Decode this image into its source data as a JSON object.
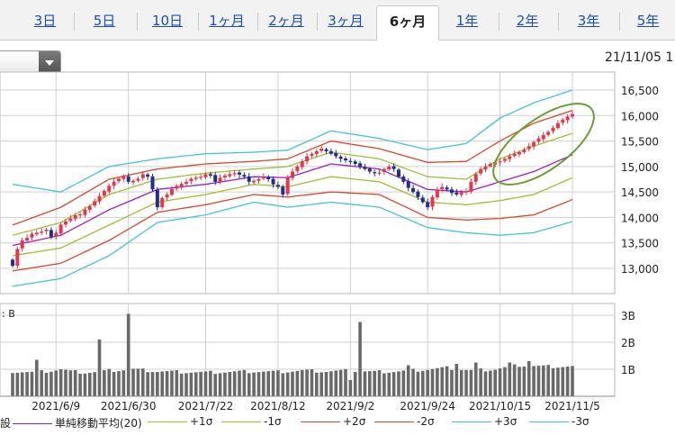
{
  "tabs": [
    {
      "label": "3日",
      "active": false
    },
    {
      "label": "5日",
      "active": false
    },
    {
      "label": "10日",
      "active": false
    },
    {
      "label": "1ヶ月",
      "active": false
    },
    {
      "label": "2ヶ月",
      "active": false
    },
    {
      "label": "3ヶ月",
      "active": false
    },
    {
      "label": "6ヶ月",
      "active": true
    },
    {
      "label": "1年",
      "active": false
    },
    {
      "label": "2年",
      "active": false
    },
    {
      "label": "3年",
      "active": false
    },
    {
      "label": "5年",
      "active": false
    }
  ],
  "header": {
    "timestamp": "21/11/05 1"
  },
  "colors": {
    "up_candle": "#e6364a",
    "down_candle": "#1f2f8c",
    "ma20": "#9b1fc6",
    "sigma1": "#9fbe34",
    "sigma2": "#d9472a",
    "sigma3": "#44c3e0",
    "volume": "#696969",
    "highlight_ellipse": "#6a9e34",
    "grid": "#d0d0d0"
  },
  "chart_data": [
    {
      "type": "candlestick",
      "title": "",
      "y_ticks": [
        "16,500",
        "16,000",
        "15,500",
        "15,000",
        "14,500",
        "14,000",
        "13,500",
        "13,000"
      ],
      "ylim": [
        12500,
        16750
      ],
      "x_tick_labels": [
        "2021/6/9",
        "2021/6/30",
        "2021/7/22",
        "2021/8/12",
        "2021/9/2",
        "2021/9/24",
        "2021/10/15",
        "2021/11/5"
      ],
      "x_tick_index": [
        9,
        24,
        40,
        55,
        70,
        86,
        101,
        116
      ],
      "close_anchors": [
        [
          0,
          13050
        ],
        [
          1,
          13380
        ],
        [
          2,
          13550
        ],
        [
          3,
          13600
        ],
        [
          4,
          13680
        ],
        [
          5,
          13700
        ],
        [
          6,
          13720
        ],
        [
          7,
          13760
        ],
        [
          8,
          13620
        ],
        [
          9,
          13700
        ],
        [
          10,
          13860
        ],
        [
          11,
          13920
        ],
        [
          12,
          13980
        ],
        [
          13,
          14040
        ],
        [
          14,
          14060
        ],
        [
          15,
          14150
        ],
        [
          16,
          14220
        ],
        [
          17,
          14320
        ],
        [
          18,
          14420
        ],
        [
          19,
          14520
        ],
        [
          20,
          14620
        ],
        [
          21,
          14700
        ],
        [
          22,
          14760
        ],
        [
          23,
          14800
        ],
        [
          24,
          14700
        ],
        [
          25,
          14720
        ],
        [
          26,
          14760
        ],
        [
          27,
          14850
        ],
        [
          28,
          14800
        ],
        [
          29,
          14550
        ],
        [
          30,
          14200
        ],
        [
          31,
          14380
        ],
        [
          32,
          14450
        ],
        [
          33,
          14560
        ],
        [
          34,
          14620
        ],
        [
          35,
          14660
        ],
        [
          36,
          14700
        ],
        [
          37,
          14760
        ],
        [
          38,
          14780
        ],
        [
          39,
          14800
        ],
        [
          40,
          14850
        ],
        [
          41,
          14820
        ],
        [
          42,
          14700
        ],
        [
          43,
          14780
        ],
        [
          44,
          14820
        ],
        [
          45,
          14850
        ],
        [
          46,
          14870
        ],
        [
          47,
          14840
        ],
        [
          48,
          14800
        ],
        [
          49,
          14700
        ],
        [
          50,
          14720
        ],
        [
          51,
          14750
        ],
        [
          52,
          14800
        ],
        [
          53,
          14750
        ],
        [
          54,
          14650
        ],
        [
          55,
          14600
        ],
        [
          56,
          14450
        ],
        [
          57,
          14780
        ],
        [
          58,
          14900
        ],
        [
          59,
          15000
        ],
        [
          60,
          15100
        ],
        [
          61,
          15200
        ],
        [
          62,
          15250
        ],
        [
          63,
          15300
        ],
        [
          64,
          15350
        ],
        [
          65,
          15300
        ],
        [
          66,
          15250
        ],
        [
          67,
          15200
        ],
        [
          68,
          15150
        ],
        [
          69,
          15120
        ],
        [
          70,
          15100
        ],
        [
          71,
          15050
        ],
        [
          72,
          15000
        ],
        [
          73,
          14950
        ],
        [
          74,
          14900
        ],
        [
          75,
          14870
        ],
        [
          76,
          14880
        ],
        [
          77,
          14950
        ],
        [
          78,
          15000
        ],
        [
          79,
          14950
        ],
        [
          80,
          14800
        ],
        [
          81,
          14700
        ],
        [
          82,
          14580
        ],
        [
          83,
          14500
        ],
        [
          84,
          14400
        ],
        [
          85,
          14300
        ],
        [
          86,
          14200
        ],
        [
          87,
          14400
        ],
        [
          88,
          14550
        ],
        [
          89,
          14600
        ],
        [
          90,
          14550
        ],
        [
          91,
          14480
        ],
        [
          92,
          14450
        ],
        [
          93,
          14500
        ],
        [
          94,
          14520
        ],
        [
          95,
          14700
        ],
        [
          96,
          14850
        ],
        [
          97,
          14950
        ],
        [
          98,
          15000
        ],
        [
          99,
          15050
        ],
        [
          100,
          15080
        ],
        [
          101,
          15100
        ],
        [
          102,
          15150
        ],
        [
          103,
          15200
        ],
        [
          104,
          15250
        ],
        [
          105,
          15280
        ],
        [
          106,
          15330
        ],
        [
          107,
          15400
        ],
        [
          108,
          15480
        ],
        [
          109,
          15550
        ],
        [
          110,
          15620
        ],
        [
          111,
          15680
        ],
        [
          112,
          15760
        ],
        [
          113,
          15850
        ],
        [
          114,
          15920
        ],
        [
          115,
          15980
        ],
        [
          116,
          16030
        ]
      ],
      "series": [
        {
          "name": "単純移動平均(20)",
          "color": "#9b1fc6",
          "anchors": [
            [
              0,
              13450
            ],
            [
              10,
              13650
            ],
            [
              20,
              14150
            ],
            [
              30,
              14550
            ],
            [
              40,
              14650
            ],
            [
              50,
              14800
            ],
            [
              57,
              14780
            ],
            [
              66,
              15050
            ],
            [
              76,
              14950
            ],
            [
              86,
              14550
            ],
            [
              94,
              14500
            ],
            [
              101,
              14700
            ],
            [
              108,
              14900
            ],
            [
              116,
              15230
            ]
          ]
        },
        {
          "name": "+1σ",
          "color": "#9fbe34",
          "anchors": [
            [
              0,
              13650
            ],
            [
              10,
              13900
            ],
            [
              20,
              14450
            ],
            [
              30,
              14750
            ],
            [
              40,
              14870
            ],
            [
              50,
              14950
            ],
            [
              57,
              15000
            ],
            [
              66,
              15280
            ],
            [
              76,
              15150
            ],
            [
              86,
              14800
            ],
            [
              94,
              14750
            ],
            [
              101,
              15150
            ],
            [
              108,
              15400
            ],
            [
              116,
              15650
            ]
          ]
        },
        {
          "name": "-1σ",
          "color": "#9fbe34",
          "anchors": [
            [
              0,
              13250
            ],
            [
              10,
              13400
            ],
            [
              20,
              13850
            ],
            [
              30,
              14300
            ],
            [
              40,
              14450
            ],
            [
              50,
              14650
            ],
            [
              57,
              14600
            ],
            [
              66,
              14800
            ],
            [
              76,
              14700
            ],
            [
              86,
              14300
            ],
            [
              94,
              14250
            ],
            [
              101,
              14330
            ],
            [
              108,
              14450
            ],
            [
              116,
              14780
            ]
          ]
        },
        {
          "name": "+2σ",
          "color": "#d9472a",
          "anchors": [
            [
              0,
              13850
            ],
            [
              10,
              14200
            ],
            [
              20,
              14750
            ],
            [
              30,
              14950
            ],
            [
              40,
              15050
            ],
            [
              50,
              15100
            ],
            [
              57,
              15150
            ],
            [
              66,
              15500
            ],
            [
              76,
              15350
            ],
            [
              86,
              15080
            ],
            [
              94,
              15100
            ],
            [
              101,
              15500
            ],
            [
              108,
              15850
            ],
            [
              116,
              16100
            ]
          ]
        },
        {
          "name": "-2σ",
          "color": "#d9472a",
          "anchors": [
            [
              0,
              12950
            ],
            [
              10,
              13100
            ],
            [
              20,
              13550
            ],
            [
              30,
              14100
            ],
            [
              40,
              14250
            ],
            [
              50,
              14450
            ],
            [
              57,
              14400
            ],
            [
              66,
              14500
            ],
            [
              76,
              14450
            ],
            [
              86,
              14000
            ],
            [
              94,
              13950
            ],
            [
              101,
              13980
            ],
            [
              108,
              14050
            ],
            [
              116,
              14350
            ]
          ]
        },
        {
          "name": "+3σ",
          "color": "#44c3e0",
          "anchors": [
            [
              0,
              14650
            ],
            [
              10,
              14500
            ],
            [
              20,
              15000
            ],
            [
              30,
              15150
            ],
            [
              40,
              15250
            ],
            [
              50,
              15280
            ],
            [
              57,
              15320
            ],
            [
              66,
              15700
            ],
            [
              76,
              15550
            ],
            [
              86,
              15330
            ],
            [
              94,
              15450
            ],
            [
              101,
              15950
            ],
            [
              108,
              16250
            ],
            [
              116,
              16500
            ]
          ]
        },
        {
          "name": "-3σ",
          "color": "#44c3e0",
          "anchors": [
            [
              0,
              12650
            ],
            [
              10,
              12800
            ],
            [
              20,
              13250
            ],
            [
              30,
              13900
            ],
            [
              40,
              14050
            ],
            [
              50,
              14300
            ],
            [
              57,
              14200
            ],
            [
              66,
              14300
            ],
            [
              76,
              14200
            ],
            [
              86,
              13800
            ],
            [
              94,
              13700
            ],
            [
              101,
              13650
            ],
            [
              108,
              13700
            ],
            [
              116,
              13920
            ]
          ]
        }
      ],
      "annotation": "ellipse around the latest uptrend (2021/10/15 - 2021/11/5)"
    },
    {
      "type": "bar",
      "title": "",
      "unit_label": "B",
      "y_ticks": [
        "3B",
        "2B",
        "1B"
      ],
      "ylim": [
        0,
        3.3
      ],
      "volume_anchors": [
        [
          0,
          0.92
        ],
        [
          5,
          0.88
        ],
        [
          8,
          0.95
        ],
        [
          10,
          1.0
        ],
        [
          12,
          0.92
        ],
        [
          15,
          0.88
        ],
        [
          18,
          0.9
        ],
        [
          20,
          0.95
        ],
        [
          25,
          1.0
        ],
        [
          30,
          0.92
        ],
        [
          35,
          0.9
        ],
        [
          40,
          0.88
        ],
        [
          45,
          0.9
        ],
        [
          50,
          0.92
        ],
        [
          55,
          0.9
        ],
        [
          60,
          0.95
        ],
        [
          65,
          0.92
        ],
        [
          70,
          0.95
        ],
        [
          75,
          0.9
        ],
        [
          80,
          0.92
        ],
        [
          85,
          0.98
        ],
        [
          90,
          1.05
        ],
        [
          95,
          0.95
        ],
        [
          100,
          1.0
        ],
        [
          105,
          1.15
        ],
        [
          110,
          1.1
        ],
        [
          116,
          1.1
        ]
      ],
      "volume_spikes": [
        [
          5,
          1.35
        ],
        [
          18,
          2.1
        ],
        [
          24,
          3.05
        ],
        [
          70,
          0.6
        ],
        [
          72,
          2.75
        ],
        [
          82,
          1.15
        ],
        [
          92,
          1.2
        ],
        [
          96,
          1.25
        ],
        [
          103,
          1.25
        ],
        [
          107,
          1.3
        ]
      ]
    }
  ],
  "legend": {
    "prefix": "設",
    "items": [
      {
        "label": "単純移動平均(20)",
        "color": "#9b1fc6"
      },
      {
        "label": "+1σ",
        "color": "#9fbe34"
      },
      {
        "label": "-1σ",
        "color": "#9fbe34"
      },
      {
        "label": "+2σ",
        "color": "#d9472a"
      },
      {
        "label": "-2σ",
        "color": "#d9472a"
      },
      {
        "label": "+3σ",
        "color": "#44c3e0"
      },
      {
        "label": "-3σ",
        "color": "#44c3e0"
      }
    ]
  }
}
